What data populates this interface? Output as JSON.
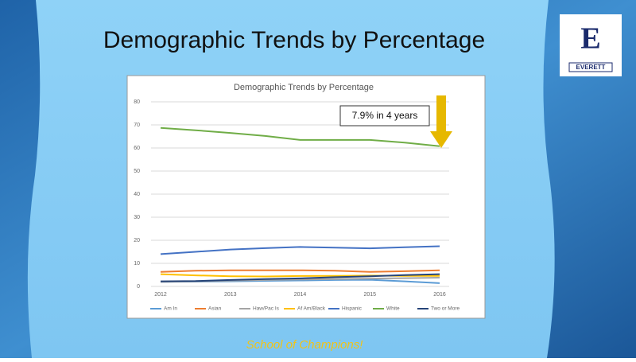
{
  "slide": {
    "title": "Demographic Trends by Percentage",
    "footer": "School of Champions!",
    "logo": {
      "letter": "E",
      "text": "EVERETT"
    }
  },
  "chart_data": {
    "type": "line",
    "title": "Demographic Trends by Percentage",
    "x": [
      2012,
      2012.5,
      2013,
      2013.5,
      2014,
      2014.5,
      2015,
      2015.5,
      2016
    ],
    "xlim": [
      2012,
      2016
    ],
    "xticks": [
      2012,
      2013,
      2014,
      2015,
      2016
    ],
    "ylim": [
      0,
      80
    ],
    "yticks": [
      0,
      10,
      20,
      30,
      40,
      50,
      60,
      70,
      80
    ],
    "grid": true,
    "legend": "bottom",
    "annotation": "7.9% in 4 years",
    "series": [
      {
        "name": "Am In",
        "color": "#5b9bd5",
        "values": [
          2,
          2.1,
          2.2,
          2.4,
          2.6,
          2.8,
          2.9,
          2.2,
          1.4
        ]
      },
      {
        "name": "Asian",
        "color": "#ed7d31",
        "values": [
          6.3,
          6.8,
          7,
          7,
          7,
          6.8,
          6.3,
          6.6,
          7
        ]
      },
      {
        "name": "Haw/Pac Is",
        "color": "#a5a5a5",
        "values": [
          2,
          2.2,
          2.5,
          2.8,
          3,
          3.2,
          3.4,
          3.6,
          3.8
        ]
      },
      {
        "name": "Af Am/Black",
        "color": "#ffc000",
        "values": [
          5.3,
          4.8,
          4.4,
          4.3,
          4.5,
          4.6,
          4.7,
          4.6,
          4.6
        ]
      },
      {
        "name": "Hispanic",
        "color": "#4472c4",
        "values": [
          14,
          15,
          16,
          16.6,
          17.1,
          16.8,
          16.5,
          17,
          17.4
        ]
      },
      {
        "name": "White",
        "color": "#70ad47",
        "values": [
          68.7,
          67.7,
          66.5,
          65.2,
          63.5,
          63.5,
          63.5,
          62.3,
          60.8
        ]
      },
      {
        "name": "Two or More",
        "color": "#264478",
        "values": [
          2.2,
          2.3,
          2.8,
          3.2,
          3.5,
          4,
          4.4,
          4.9,
          5.3
        ]
      }
    ]
  }
}
